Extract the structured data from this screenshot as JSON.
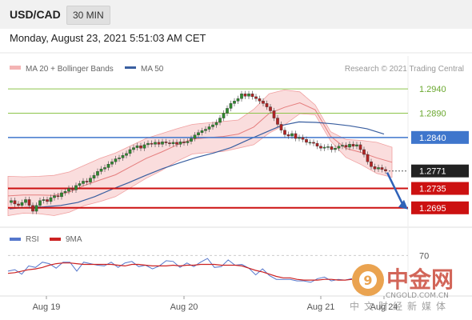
{
  "header": {
    "pair": "USD/CAD",
    "timeframe": "30 MIN"
  },
  "datetime": "Monday, August 23, 2021 5:51:03 AM CET",
  "credit": "Research © 2021 Trading Central",
  "legend": {
    "bb_label": "MA 20 + Bollinger Bands",
    "ma50_label": "MA 50",
    "rsi_label": "RSI",
    "rsi_ma_label": "9MA"
  },
  "colors": {
    "resistance": "#8dc44b",
    "pivot": "#3f76cc",
    "support": "#cc1111",
    "last": "#222222",
    "candle_up": "#2e8b2e",
    "candle_down": "#b22222",
    "bb": "#f4b4b4",
    "ma50": "#3a5fa0",
    "rsi": "#5577cc",
    "rsi_ma": "#cc2222"
  },
  "chart_data": {
    "type": "candlestick",
    "title": "USD/CAD 30 MIN",
    "x_labels": [
      "Aug 19",
      "Aug 20",
      "Aug 21",
      "Aug 24"
    ],
    "ylim": [
      1.2665,
      1.2965
    ],
    "levels": [
      {
        "value": 1.294,
        "label": "1.2940",
        "type": "resistance"
      },
      {
        "value": 1.289,
        "label": "1.2890",
        "type": "resistance"
      },
      {
        "value": 1.284,
        "label": "1.2840",
        "type": "pivot"
      },
      {
        "value": 1.2771,
        "label": "1.2771",
        "type": "last"
      },
      {
        "value": 1.2735,
        "label": "1.2735",
        "type": "support"
      },
      {
        "value": 1.2695,
        "label": "1.2695",
        "type": "support"
      }
    ],
    "close": [
      1.271,
      1.2703,
      1.27,
      1.2706,
      1.2712,
      1.27,
      1.2688,
      1.27,
      1.271,
      1.2712,
      1.2708,
      1.2716,
      1.272,
      1.2718,
      1.2726,
      1.2729,
      1.2735,
      1.2732,
      1.2741,
      1.2745,
      1.275,
      1.2748,
      1.2756,
      1.2762,
      1.277,
      1.2775,
      1.2778,
      1.2785,
      1.279,
      1.2796,
      1.2798,
      1.2803,
      1.2807,
      1.2815,
      1.2819,
      1.2823,
      1.2818,
      1.2825,
      1.2828,
      1.2826,
      1.283,
      1.2826,
      1.2831,
      1.2829,
      1.2827,
      1.283,
      1.2826,
      1.2831,
      1.2829,
      1.2832,
      1.2838,
      1.2845,
      1.285,
      1.2854,
      1.2857,
      1.2862,
      1.2866,
      1.2871,
      1.288,
      1.289,
      1.29,
      1.291,
      1.2915,
      1.292,
      1.293,
      1.2925,
      1.293,
      1.2924,
      1.292,
      1.2915,
      1.291,
      1.2903,
      1.2895,
      1.288,
      1.2867,
      1.2855,
      1.2846,
      1.2843,
      1.2848,
      1.2838,
      1.284,
      1.2836,
      1.283,
      1.283,
      1.2828,
      1.2822,
      1.2818,
      1.282,
      1.2821,
      1.2815,
      1.2818,
      1.2822,
      1.2824,
      1.282,
      1.2826,
      1.2822,
      1.2825,
      1.2815,
      1.2805,
      1.279,
      1.278,
      1.2775,
      1.2778,
      1.2774,
      1.2771
    ],
    "bb_upper": [
      1.276,
      1.2759,
      1.276,
      1.2762,
      1.2769,
      1.2783,
      1.2797,
      1.2808,
      1.2823,
      1.2838,
      1.2848,
      1.2858,
      1.2867,
      1.287,
      1.2873,
      1.2876,
      1.2898,
      1.293,
      1.2938,
      1.2934,
      1.2907,
      1.2852,
      1.2836,
      1.2834,
      1.283,
      1.282
    ],
    "bb_lower": [
      1.2679,
      1.2684,
      1.2683,
      1.2679,
      1.2686,
      1.27,
      1.2708,
      1.2718,
      1.2737,
      1.2756,
      1.2772,
      1.2791,
      1.2806,
      1.2809,
      1.2811,
      1.2818,
      1.2825,
      1.2849,
      1.2866,
      1.2889,
      1.2887,
      1.2833,
      1.2799,
      1.2784,
      1.2766,
      1.2758
    ],
    "ma50": [
      1.2693,
      1.2696,
      1.2697,
      1.27,
      1.2706,
      1.2718,
      1.2733,
      1.2747,
      1.2762,
      1.2776,
      1.2788,
      1.2799,
      1.2808,
      1.2819,
      1.2835,
      1.285,
      1.2865,
      1.2872,
      1.2871,
      1.2868,
      1.2864,
      1.2858,
      1.2847
    ],
    "rsi": {
      "ylim": [
        20,
        80
      ],
      "level_label": "70",
      "level": 70,
      "rsi": [
        49,
        51,
        45,
        56,
        54,
        61,
        59,
        53,
        61,
        61,
        49,
        61,
        59,
        57,
        56,
        61,
        54,
        60,
        62,
        55,
        57,
        52,
        56,
        63,
        62,
        54,
        60,
        55,
        61,
        66,
        54,
        55,
        64,
        57,
        58,
        53,
        44,
        52,
        43,
        38,
        38,
        38,
        36,
        36,
        34,
        39,
        41,
        36,
        38,
        37,
        39
      ],
      "ma": [
        46,
        47,
        49,
        51,
        52,
        54,
        57,
        59,
        60,
        60,
        59,
        58,
        58,
        58,
        58,
        58,
        57,
        56,
        58,
        58,
        57,
        56,
        56,
        56,
        57,
        56,
        57,
        57,
        58,
        58,
        58,
        57,
        57,
        57,
        56,
        53,
        50,
        48,
        45,
        42,
        40,
        40,
        38,
        37,
        37,
        37,
        38,
        38,
        37,
        37,
        38
      ]
    }
  }
}
